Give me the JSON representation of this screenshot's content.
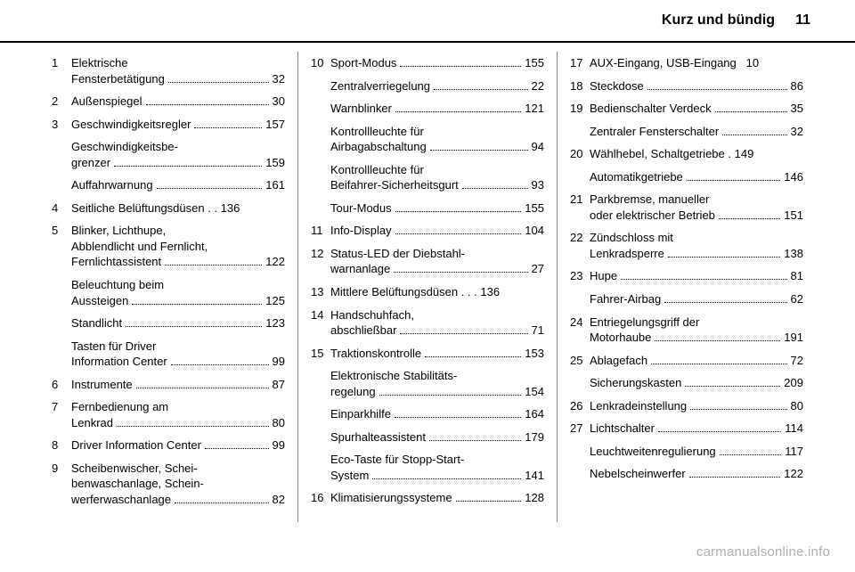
{
  "header": {
    "title": "Kurz und bündig",
    "page": "11"
  },
  "footer": "carmanualsonline.info",
  "columns": [
    {
      "entries": [
        {
          "num": "1",
          "lines": [
            {
              "label": "Elektrische"
            },
            {
              "label": "Fensterbetätigung",
              "page": "32"
            }
          ]
        },
        {
          "num": "2",
          "lines": [
            {
              "label": "Außenspiegel",
              "page": "30"
            }
          ]
        },
        {
          "num": "3",
          "lines": [
            {
              "label": "Geschwindigkeitsregler",
              "page": "157"
            }
          ]
        },
        {
          "lines": [
            {
              "label": "Geschwindigkeitsbe-"
            },
            {
              "label": "grenzer",
              "page": "159"
            }
          ]
        },
        {
          "lines": [
            {
              "label": "Auffahrwarnung",
              "page": "161"
            }
          ]
        },
        {
          "num": "4",
          "lines": [
            {
              "label": "Seitliche Belüftungsdüsen",
              "dots": false,
              "sep": " . . ",
              "page": "136"
            }
          ]
        },
        {
          "num": "5",
          "lines": [
            {
              "label": "Blinker, Lichthupe,"
            },
            {
              "label": "Abblendlicht und Fernlicht,"
            },
            {
              "label": "Fernlichtassistent",
              "page": "122"
            }
          ]
        },
        {
          "lines": [
            {
              "label": "Beleuchtung beim"
            },
            {
              "label": "Aussteigen",
              "page": "125"
            }
          ]
        },
        {
          "lines": [
            {
              "label": "Standlicht",
              "page": "123"
            }
          ]
        },
        {
          "lines": [
            {
              "label": "Tasten für Driver"
            },
            {
              "label": "Information Center",
              "page": "99"
            }
          ]
        },
        {
          "num": "6",
          "lines": [
            {
              "label": "Instrumente",
              "page": "87"
            }
          ]
        },
        {
          "num": "7",
          "lines": [
            {
              "label": "Fernbedienung am"
            },
            {
              "label": "Lenkrad",
              "page": "80"
            }
          ]
        },
        {
          "num": "8",
          "lines": [
            {
              "label": "Driver Information Center",
              "page": "99"
            }
          ]
        },
        {
          "num": "9",
          "lines": [
            {
              "label": "Scheibenwischer, Schei-"
            },
            {
              "label": "benwaschanlage, Schein-"
            },
            {
              "label": "werferwaschanlage",
              "page": "82"
            }
          ]
        }
      ]
    },
    {
      "entries": [
        {
          "num": "10",
          "lines": [
            {
              "label": "Sport-Modus",
              "page": "155"
            }
          ]
        },
        {
          "lines": [
            {
              "label": "Zentralverriegelung",
              "page": "22"
            }
          ]
        },
        {
          "lines": [
            {
              "label": "Warnblinker",
              "page": "121"
            }
          ]
        },
        {
          "lines": [
            {
              "label": "Kontrollleuchte für"
            },
            {
              "label": "Airbagabschaltung",
              "page": "94"
            }
          ]
        },
        {
          "lines": [
            {
              "label": "Kontrollleuchte für"
            },
            {
              "label": "Beifahrer-Sicherheitsgurt",
              "page": "93"
            }
          ]
        },
        {
          "lines": [
            {
              "label": "Tour-Modus",
              "page": "155"
            }
          ]
        },
        {
          "num": "11",
          "lines": [
            {
              "label": "Info-Display",
              "page": "104"
            }
          ]
        },
        {
          "num": "12",
          "lines": [
            {
              "label": "Status-LED der Diebstahl-"
            },
            {
              "label": "warnanlage",
              "page": "27"
            }
          ]
        },
        {
          "num": "13",
          "lines": [
            {
              "label": "Mittlere Belüftungsdüsen",
              "dots": false,
              "sep": " . . . ",
              "page": "136"
            }
          ]
        },
        {
          "num": "14",
          "lines": [
            {
              "label": "Handschuhfach,"
            },
            {
              "label": "abschließbar",
              "page": "71"
            }
          ]
        },
        {
          "num": "15",
          "lines": [
            {
              "label": "Traktionskontrolle",
              "page": "153"
            }
          ]
        },
        {
          "lines": [
            {
              "label": "Elektronische Stabilitäts-"
            },
            {
              "label": "regelung",
              "page": "154"
            }
          ]
        },
        {
          "lines": [
            {
              "label": "Einparkhilfe",
              "page": "164"
            }
          ]
        },
        {
          "lines": [
            {
              "label": "Spurhalteassistent",
              "page": "179"
            }
          ]
        },
        {
          "lines": [
            {
              "label": "Eco-Taste für Stopp-Start-"
            },
            {
              "label": "System",
              "page": "141"
            }
          ]
        },
        {
          "num": "16",
          "lines": [
            {
              "label": "Klimatisierungssysteme",
              "page": "128"
            }
          ]
        }
      ]
    },
    {
      "entries": [
        {
          "num": "17",
          "lines": [
            {
              "label": "AUX-Eingang, USB-Eingang",
              "dots": false,
              "sep": "   ",
              "page": "10"
            }
          ]
        },
        {
          "num": "18",
          "lines": [
            {
              "label": "Steckdose",
              "page": "86"
            }
          ]
        },
        {
          "num": "19",
          "lines": [
            {
              "label": "Bedienschalter Verdeck",
              "page": "35"
            }
          ]
        },
        {
          "lines": [
            {
              "label": "Zentraler Fensterschalter",
              "page": "32"
            }
          ]
        },
        {
          "num": "20",
          "lines": [
            {
              "label": "Wählhebel, Schaltgetriebe",
              "dots": false,
              "sep": " . ",
              "page": "149"
            }
          ]
        },
        {
          "lines": [
            {
              "label": "Automatikgetriebe",
              "page": "146"
            }
          ]
        },
        {
          "num": "21",
          "lines": [
            {
              "label": "Parkbremse, manueller"
            },
            {
              "label": "oder elektrischer Betrieb",
              "page": "151"
            }
          ]
        },
        {
          "num": "22",
          "lines": [
            {
              "label": "Zündschloss mit"
            },
            {
              "label": "Lenkradsperre",
              "page": "138"
            }
          ]
        },
        {
          "num": "23",
          "lines": [
            {
              "label": "Hupe",
              "page": "81"
            }
          ]
        },
        {
          "lines": [
            {
              "label": "Fahrer-Airbag",
              "page": "62"
            }
          ]
        },
        {
          "num": "24",
          "lines": [
            {
              "label": "Entriegelungsgriff der"
            },
            {
              "label": "Motorhaube",
              "page": "191"
            }
          ]
        },
        {
          "num": "25",
          "lines": [
            {
              "label": "Ablagefach",
              "page": "72"
            }
          ]
        },
        {
          "lines": [
            {
              "label": "Sicherungskasten",
              "page": "209"
            }
          ]
        },
        {
          "num": "26",
          "lines": [
            {
              "label": "Lenkradeinstellung",
              "page": "80"
            }
          ]
        },
        {
          "num": "27",
          "lines": [
            {
              "label": "Lichtschalter",
              "page": "114"
            }
          ]
        },
        {
          "lines": [
            {
              "label": "Leuchtweitenregulierung",
              "page": "117"
            }
          ]
        },
        {
          "lines": [
            {
              "label": "Nebelscheinwerfer",
              "page": "122"
            }
          ]
        }
      ]
    }
  ]
}
